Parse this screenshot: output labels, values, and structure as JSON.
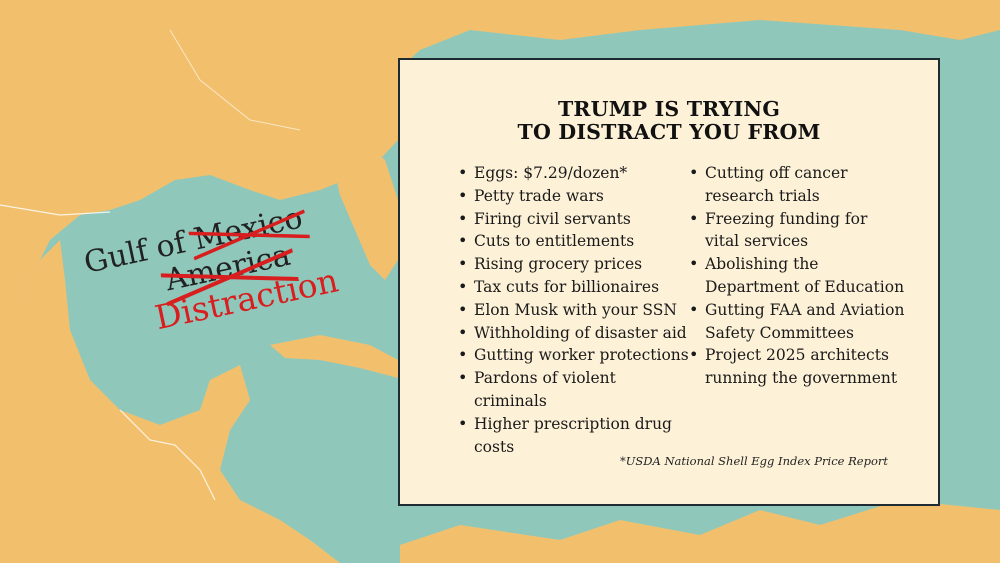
{
  "map_label": {
    "prefix": "Gulf of",
    "struck_1": "Mexico",
    "struck_2": "America",
    "replacement": "Distraction"
  },
  "panel": {
    "title_line1": "TRUMP IS TRYING",
    "title_line2": "TO DISTRACT YOU FROM",
    "column1": [
      "Eggs: $7.29/dozen*",
      "Petty trade wars",
      "Firing civil servants",
      "Cuts to entitlements",
      "Rising grocery prices",
      "Tax cuts for billionaires",
      "Elon Musk with your SSN",
      "Withholding of disaster aid",
      "Gutting worker protections",
      "Pardons of violent criminals",
      "Higher prescription drug costs"
    ],
    "column2": [
      "Cutting off cancer research trials",
      "Freezing funding for vital services",
      "Abolishing the Department of Education",
      "Gutting FAA and Aviation Safety Committees",
      "Project 2025 architects running the government"
    ],
    "footnote": "*USDA National Shell Egg Index Price Report"
  },
  "colors": {
    "land": "#f2c06d",
    "water": "#8fc8bb",
    "panel_bg": "#fdf1d8",
    "strike_red": "#d81e1e"
  }
}
